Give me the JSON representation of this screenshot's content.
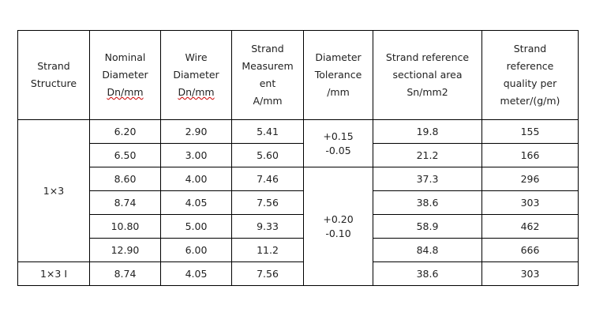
{
  "headers": [
    [
      "Strand",
      "Structure"
    ],
    [
      "Nominal",
      "Diameter",
      "Dn/mm"
    ],
    [
      "Wire",
      "Diameter",
      "Dn/mm"
    ],
    [
      "Strand",
      "Measurem",
      "ent",
      "A/mm"
    ],
    [
      "Diameter",
      "Tolerance",
      "/mm"
    ],
    [
      "Strand reference",
      "sectional area",
      "Sn/mm2"
    ],
    [
      "Strand",
      "reference",
      "quality per",
      "meter/(g/m)"
    ]
  ],
  "structures": [
    "1×3",
    "1×3 I"
  ],
  "tolerances": [
    [
      "+0.15",
      "-0.05"
    ],
    [
      "+0.20",
      "-0.10"
    ]
  ],
  "rows": [
    [
      "6.20",
      "2.90",
      "5.41",
      "19.8",
      "155"
    ],
    [
      "6.50",
      "3.00",
      "5.60",
      "21.2",
      "166"
    ],
    [
      "8.60",
      "4.00",
      "7.46",
      "37.3",
      "296"
    ],
    [
      "8.74",
      "4.05",
      "7.56",
      "38.6",
      "303"
    ],
    [
      "10.80",
      "5.00",
      "9.33",
      "58.9",
      "462"
    ],
    [
      "12.90",
      "6.00",
      "11.2",
      "84.8",
      "666"
    ],
    [
      "8.74",
      "4.05",
      "7.56",
      "38.6",
      "303"
    ]
  ]
}
